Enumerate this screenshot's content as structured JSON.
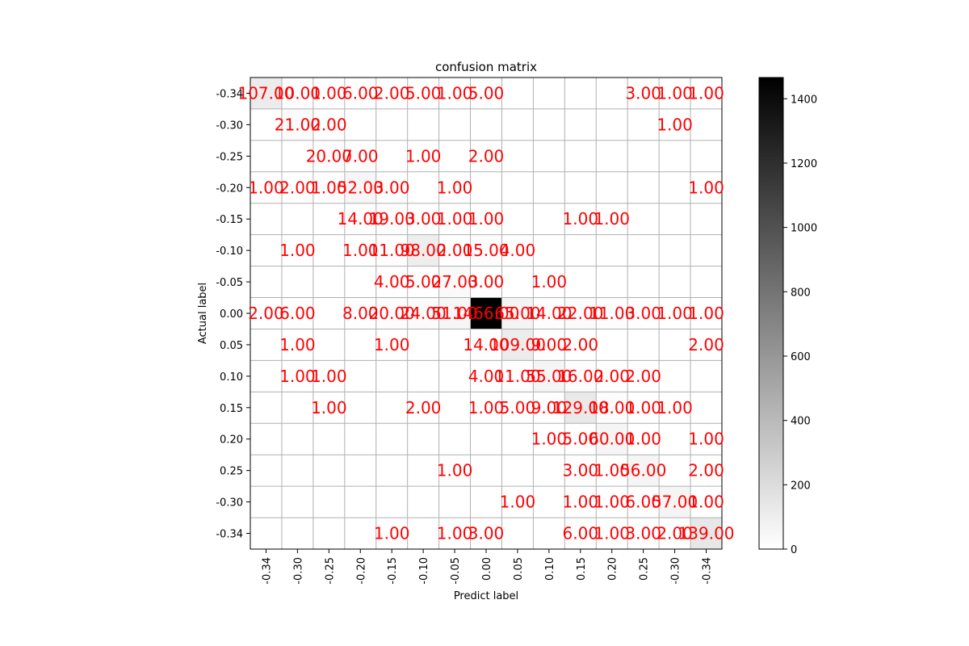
{
  "chart_data": {
    "type": "heatmap",
    "title": "confusion matrix",
    "xlabel": "Predict label",
    "ylabel": "Actual label",
    "x_tick_labels": [
      "-0.34",
      "-0.30",
      "-0.25",
      "-0.20",
      "-0.15",
      "-0.10",
      "-0.05",
      "0.00",
      "0.05",
      "0.10",
      "0.15",
      "0.20",
      "0.25",
      "-0.30",
      "-0.34"
    ],
    "y_tick_labels": [
      "-0.34",
      "-0.30",
      "-0.25",
      "-0.20",
      "-0.15",
      "-0.10",
      "-0.05",
      "0.00",
      "0.05",
      "0.10",
      "0.15",
      "0.20",
      "0.25",
      "-0.30",
      "-0.34"
    ],
    "cell_labels": [
      [
        "107.00",
        "10.00",
        "1.00",
        "6.00",
        "2.00",
        "5.00",
        "1.00",
        "5.00",
        "",
        "",
        "",
        "",
        "3.00",
        "1.00",
        "1.00"
      ],
      [
        "",
        "21.00",
        "2.00",
        "",
        "",
        "",
        "",
        "",
        "",
        "",
        "",
        "",
        "",
        "1.00",
        ""
      ],
      [
        "",
        "",
        "20.00",
        "7.00",
        "",
        "1.00",
        "",
        "2.00",
        "",
        "",
        "",
        "",
        "",
        "",
        ""
      ],
      [
        "1.00",
        "2.00",
        "1.00",
        "52.00",
        "3.00",
        "",
        "1.00",
        "",
        "",
        "",
        "",
        "",
        "",
        "",
        "1.00"
      ],
      [
        "",
        "",
        "",
        "14.00",
        "19.00",
        "3.00",
        "1.00",
        "1.00",
        "",
        "",
        "1.00",
        "1.00",
        "",
        "",
        ""
      ],
      [
        "",
        "1.00",
        "",
        "1.00",
        "11.00",
        "98.00",
        "2.00",
        "15.00",
        "4.00",
        "",
        "",
        "",
        "",
        "",
        ""
      ],
      [
        "",
        "",
        "",
        "",
        "4.00",
        "5.00",
        "27.00",
        "3.00",
        "",
        "1.00",
        "",
        "",
        "",
        "",
        ""
      ],
      [
        "2.00",
        "6.00",
        "",
        "8.00",
        "20.00",
        "24.00",
        "51.00",
        "1466.00",
        "65.00",
        "14.00",
        "22.00",
        "11.00",
        "3.00",
        "1.00",
        "1.00"
      ],
      [
        "",
        "1.00",
        "",
        "",
        "1.00",
        "",
        "",
        "14.00",
        "109.00",
        "9.00",
        "2.00",
        "",
        "",
        "",
        "2.00"
      ],
      [
        "",
        "1.00",
        "1.00",
        "",
        "",
        "",
        "",
        "4.00",
        "11.00",
        "55.00",
        "16.00",
        "2.00",
        "2.00",
        "",
        ""
      ],
      [
        "",
        "",
        "1.00",
        "",
        "",
        "2.00",
        "",
        "1.00",
        "5.00",
        "9.00",
        "129.00",
        "18.00",
        "1.00",
        "1.00",
        ""
      ],
      [
        "",
        "",
        "",
        "",
        "",
        "",
        "",
        "",
        "",
        "1.00",
        "5.00",
        "60.00",
        "1.00",
        "",
        "1.00"
      ],
      [
        "",
        "",
        "",
        "",
        "",
        "",
        "1.00",
        "",
        "",
        "",
        "3.00",
        "1.00",
        "56.00",
        "",
        "2.00"
      ],
      [
        "",
        "",
        "",
        "",
        "",
        "",
        "",
        "",
        "1.00",
        "",
        "1.00",
        "1.00",
        "6.00",
        "57.00",
        "1.00"
      ],
      [
        "",
        "",
        "",
        "",
        "1.00",
        "",
        "1.00",
        "3.00",
        "",
        "",
        "6.00",
        "1.00",
        "3.00",
        "2.00",
        "139.00"
      ]
    ],
    "colorbar": {
      "min": 0,
      "max": 1466,
      "ticks": [
        0,
        200,
        400,
        600,
        800,
        1000,
        1200,
        1400
      ],
      "colormap": "Greys"
    },
    "grid": true
  },
  "colors": {
    "annotation": "#ff0000",
    "grid": "#b0b0b0",
    "axis": "#000000"
  }
}
